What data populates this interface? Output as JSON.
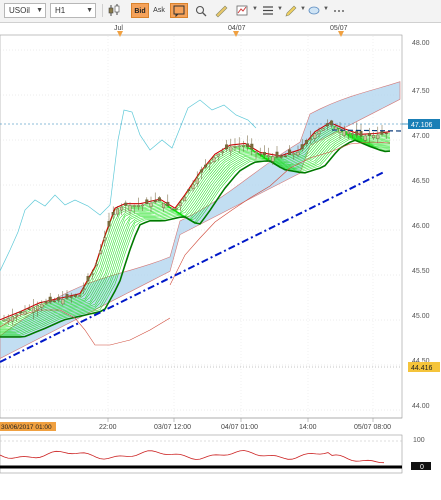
{
  "toolbar": {
    "symbol": "USOil",
    "timeframe": "H1",
    "bid_label": "Bid",
    "ask_label": "Ask"
  },
  "price_axis": {
    "labels": [
      "48.00",
      "47.50",
      "47.00",
      "46.50",
      "46.00",
      "45.50",
      "45.00",
      "44.50",
      "44.00"
    ],
    "current_price": "47.106",
    "marker_price": "44.416"
  },
  "time_axis": {
    "top_labels": [
      "Jul",
      "04/07",
      "05/07"
    ],
    "bottom_labels": [
      "22:00",
      "03/07 12:00",
      "04/07 01:00",
      "14:00",
      "05/07 08:00"
    ],
    "cursor_label": "30/06/2017 01:00"
  },
  "indicator": {
    "labels": [
      "100",
      "0"
    ]
  },
  "colors": {
    "bull": "#c8c8a0",
    "bear": "#7a6a3a",
    "ribbon": "#00dd00",
    "ribbon_dark": "#007a00",
    "ema_red": "#cc0000",
    "cloud": "#b8d9f0",
    "cloud_line": "#5ec9d8",
    "trend": "#0018c8",
    "current_price_bg": "#1a7fb6",
    "marker_bg": "#f5c43a",
    "cursor_bg": "#f0a040"
  }
}
